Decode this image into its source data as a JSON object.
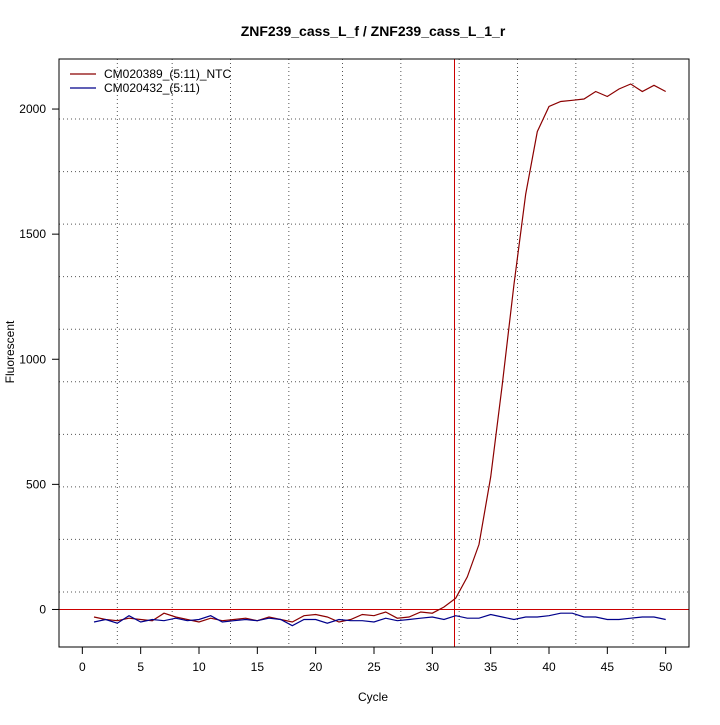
{
  "chart_data": {
    "type": "line",
    "title": "ZNF239_cass_L_f / ZNF239_cass_L_1_r",
    "xlabel": "Cycle",
    "ylabel": "Fluorescent",
    "xlim": [
      -2,
      52
    ],
    "ylim": [
      -150,
      2200
    ],
    "x_ticks": [
      0,
      5,
      10,
      15,
      20,
      25,
      30,
      35,
      40,
      45,
      50
    ],
    "x_tick_labels": [
      "0",
      "5",
      "10",
      "15",
      "20",
      "25",
      "30",
      "35",
      "40",
      "45",
      "50"
    ],
    "y_ticks": [
      0,
      500,
      1000,
      1500,
      2000
    ],
    "y_tick_labels": [
      "0",
      "500",
      "1000",
      "1500",
      "2000"
    ],
    "x_grid_lines": [
      3,
      7.7,
      12.7,
      17.7,
      22.3,
      27.3,
      32.3,
      37.3,
      42.3,
      47.2
    ],
    "y_grid_lines": [
      70,
      280,
      490,
      700,
      910,
      1120,
      1330,
      1540,
      1750,
      1960
    ],
    "grid": "dotted",
    "legend_position": "top-left",
    "threshold_line": {
      "y": 0,
      "color": "#cc0000"
    },
    "cycle_marker": {
      "x": 31.9,
      "color": "#cc0000"
    },
    "x": [
      1,
      2,
      3,
      4,
      5,
      6,
      7,
      8,
      9,
      10,
      11,
      12,
      13,
      14,
      15,
      16,
      17,
      18,
      19,
      20,
      21,
      22,
      23,
      24,
      25,
      26,
      27,
      28,
      29,
      30,
      31,
      32,
      33,
      34,
      35,
      36,
      37,
      38,
      39,
      40,
      41,
      42,
      43,
      44,
      45,
      46,
      47,
      48,
      49,
      50
    ],
    "series": [
      {
        "name": "CM020389_(5:11)_NTC",
        "color": "#8b0000",
        "values": [
          -30,
          -40,
          -45,
          -35,
          -40,
          -45,
          -15,
          -30,
          -40,
          -50,
          -35,
          -45,
          -40,
          -35,
          -45,
          -30,
          -40,
          -50,
          -25,
          -20,
          -30,
          -50,
          -40,
          -20,
          -25,
          -10,
          -35,
          -30,
          -10,
          -15,
          10,
          45,
          130,
          260,
          530,
          900,
          1300,
          1660,
          1910,
          2010,
          2030,
          2035,
          2040,
          2070,
          2050,
          2080,
          2100,
          2070,
          2095,
          2070
        ]
      },
      {
        "name": "CM020432_(5:11)",
        "color": "#00008b",
        "values": [
          -50,
          -40,
          -55,
          -25,
          -50,
          -40,
          -45,
          -35,
          -45,
          -40,
          -25,
          -50,
          -45,
          -40,
          -45,
          -35,
          -40,
          -65,
          -40,
          -40,
          -55,
          -40,
          -45,
          -45,
          -50,
          -35,
          -45,
          -40,
          -35,
          -30,
          -40,
          -25,
          -35,
          -35,
          -20,
          -30,
          -40,
          -30,
          -30,
          -25,
          -15,
          -15,
          -30,
          -30,
          -40,
          -40,
          -35,
          -30,
          -30,
          -40
        ]
      }
    ]
  }
}
